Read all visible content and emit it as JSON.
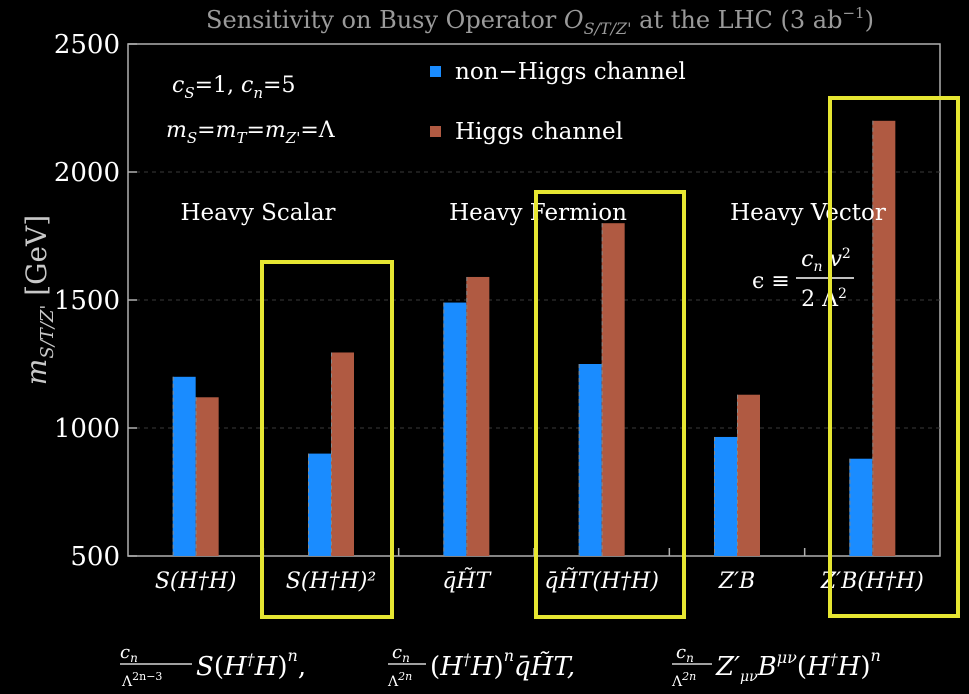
{
  "chart_data": {
    "type": "bar",
    "title": "Sensitivity on Busy Operator O_S/T/Z' at the LHC (3 ab⁻¹)",
    "ylabel": "m_S/T/Z' [GeV]",
    "ylim": [
      500,
      2500
    ],
    "yticks": [
      500,
      1000,
      1500,
      2000,
      2500
    ],
    "categories": [
      "S(H†H)",
      "S(H†H)²",
      "q̄H̃T",
      "q̄H̃T(H†H)",
      "Z′B",
      "Z′B(H†H)"
    ],
    "series": [
      {
        "name": "non−Higgs channel",
        "color": "#1a8cff",
        "values": [
          1200,
          900,
          1490,
          1250,
          965,
          880
        ]
      },
      {
        "name": "Higgs channel",
        "color": "#b05a42",
        "values": [
          1120,
          1295,
          1590,
          1800,
          1130,
          2200
        ]
      }
    ],
    "group_labels": [
      "Heavy Scalar",
      "Heavy Fermion",
      "Heavy Vector"
    ],
    "annotations": {
      "params": "c_S=1, c_n=5",
      "masses": "m_S=m_T=m_Z'=Λ",
      "epsilon_lhs": "ϵ ≡",
      "epsilon_num": "c_n v²",
      "epsilon_den": "2 Λ²"
    },
    "highlighted_categories": [
      1,
      3,
      5
    ],
    "highlight_color": "#e6e632",
    "grid": "horizontal-dashed",
    "legend_position": "top-center"
  },
  "formulas": [
    "c_n/Λ^(2n−3) S(H†H)^n,",
    "c_n/Λ^(2n) (H†H)^n q̄H̃T,",
    "c_n/Λ^(2n) Z′_μν B^μν (H†H)^n"
  ]
}
